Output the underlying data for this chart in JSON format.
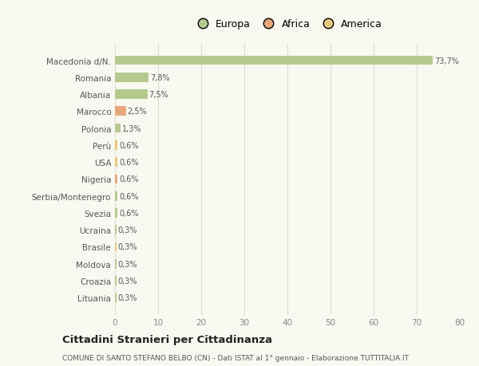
{
  "categories": [
    "Macedonia d/N.",
    "Romania",
    "Albania",
    "Marocco",
    "Polonia",
    "Perù",
    "USA",
    "Nigeria",
    "Serbia/Montenegro",
    "Svezia",
    "Ucraina",
    "Brasile",
    "Moldova",
    "Croazia",
    "Lituania"
  ],
  "values": [
    73.7,
    7.8,
    7.5,
    2.5,
    1.3,
    0.6,
    0.6,
    0.6,
    0.6,
    0.6,
    0.3,
    0.3,
    0.3,
    0.3,
    0.3
  ],
  "labels": [
    "73,7%",
    "7,8%",
    "7,5%",
    "2,5%",
    "1,3%",
    "0,6%",
    "0,6%",
    "0,6%",
    "0,6%",
    "0,6%",
    "0,3%",
    "0,3%",
    "0,3%",
    "0,3%",
    "0,3%"
  ],
  "colors": [
    "#b5c98e",
    "#b5c98e",
    "#b5c98e",
    "#e8a87c",
    "#b5c98e",
    "#e8c87c",
    "#e8c87c",
    "#e8a87c",
    "#b5c98e",
    "#b5c98e",
    "#b5c98e",
    "#e8c87c",
    "#b5c98e",
    "#b5c98e",
    "#b5c98e"
  ],
  "legend_labels": [
    "Europa",
    "Africa",
    "America"
  ],
  "legend_colors": [
    "#b5c98e",
    "#e8a87c",
    "#e8c87c"
  ],
  "xlim": [
    0,
    80
  ],
  "xticks": [
    0,
    10,
    20,
    30,
    40,
    50,
    60,
    70,
    80
  ],
  "title": "Cittadini Stranieri per Cittadinanza",
  "subtitle": "COMUNE DI SANTO STEFANO BELBO (CN) - Dati ISTAT al 1° gennaio - Elaborazione TUTTITALIA.IT",
  "bg_color": "#f9f9f2",
  "bar_height": 0.55,
  "gridcolor": "#ddddcc"
}
